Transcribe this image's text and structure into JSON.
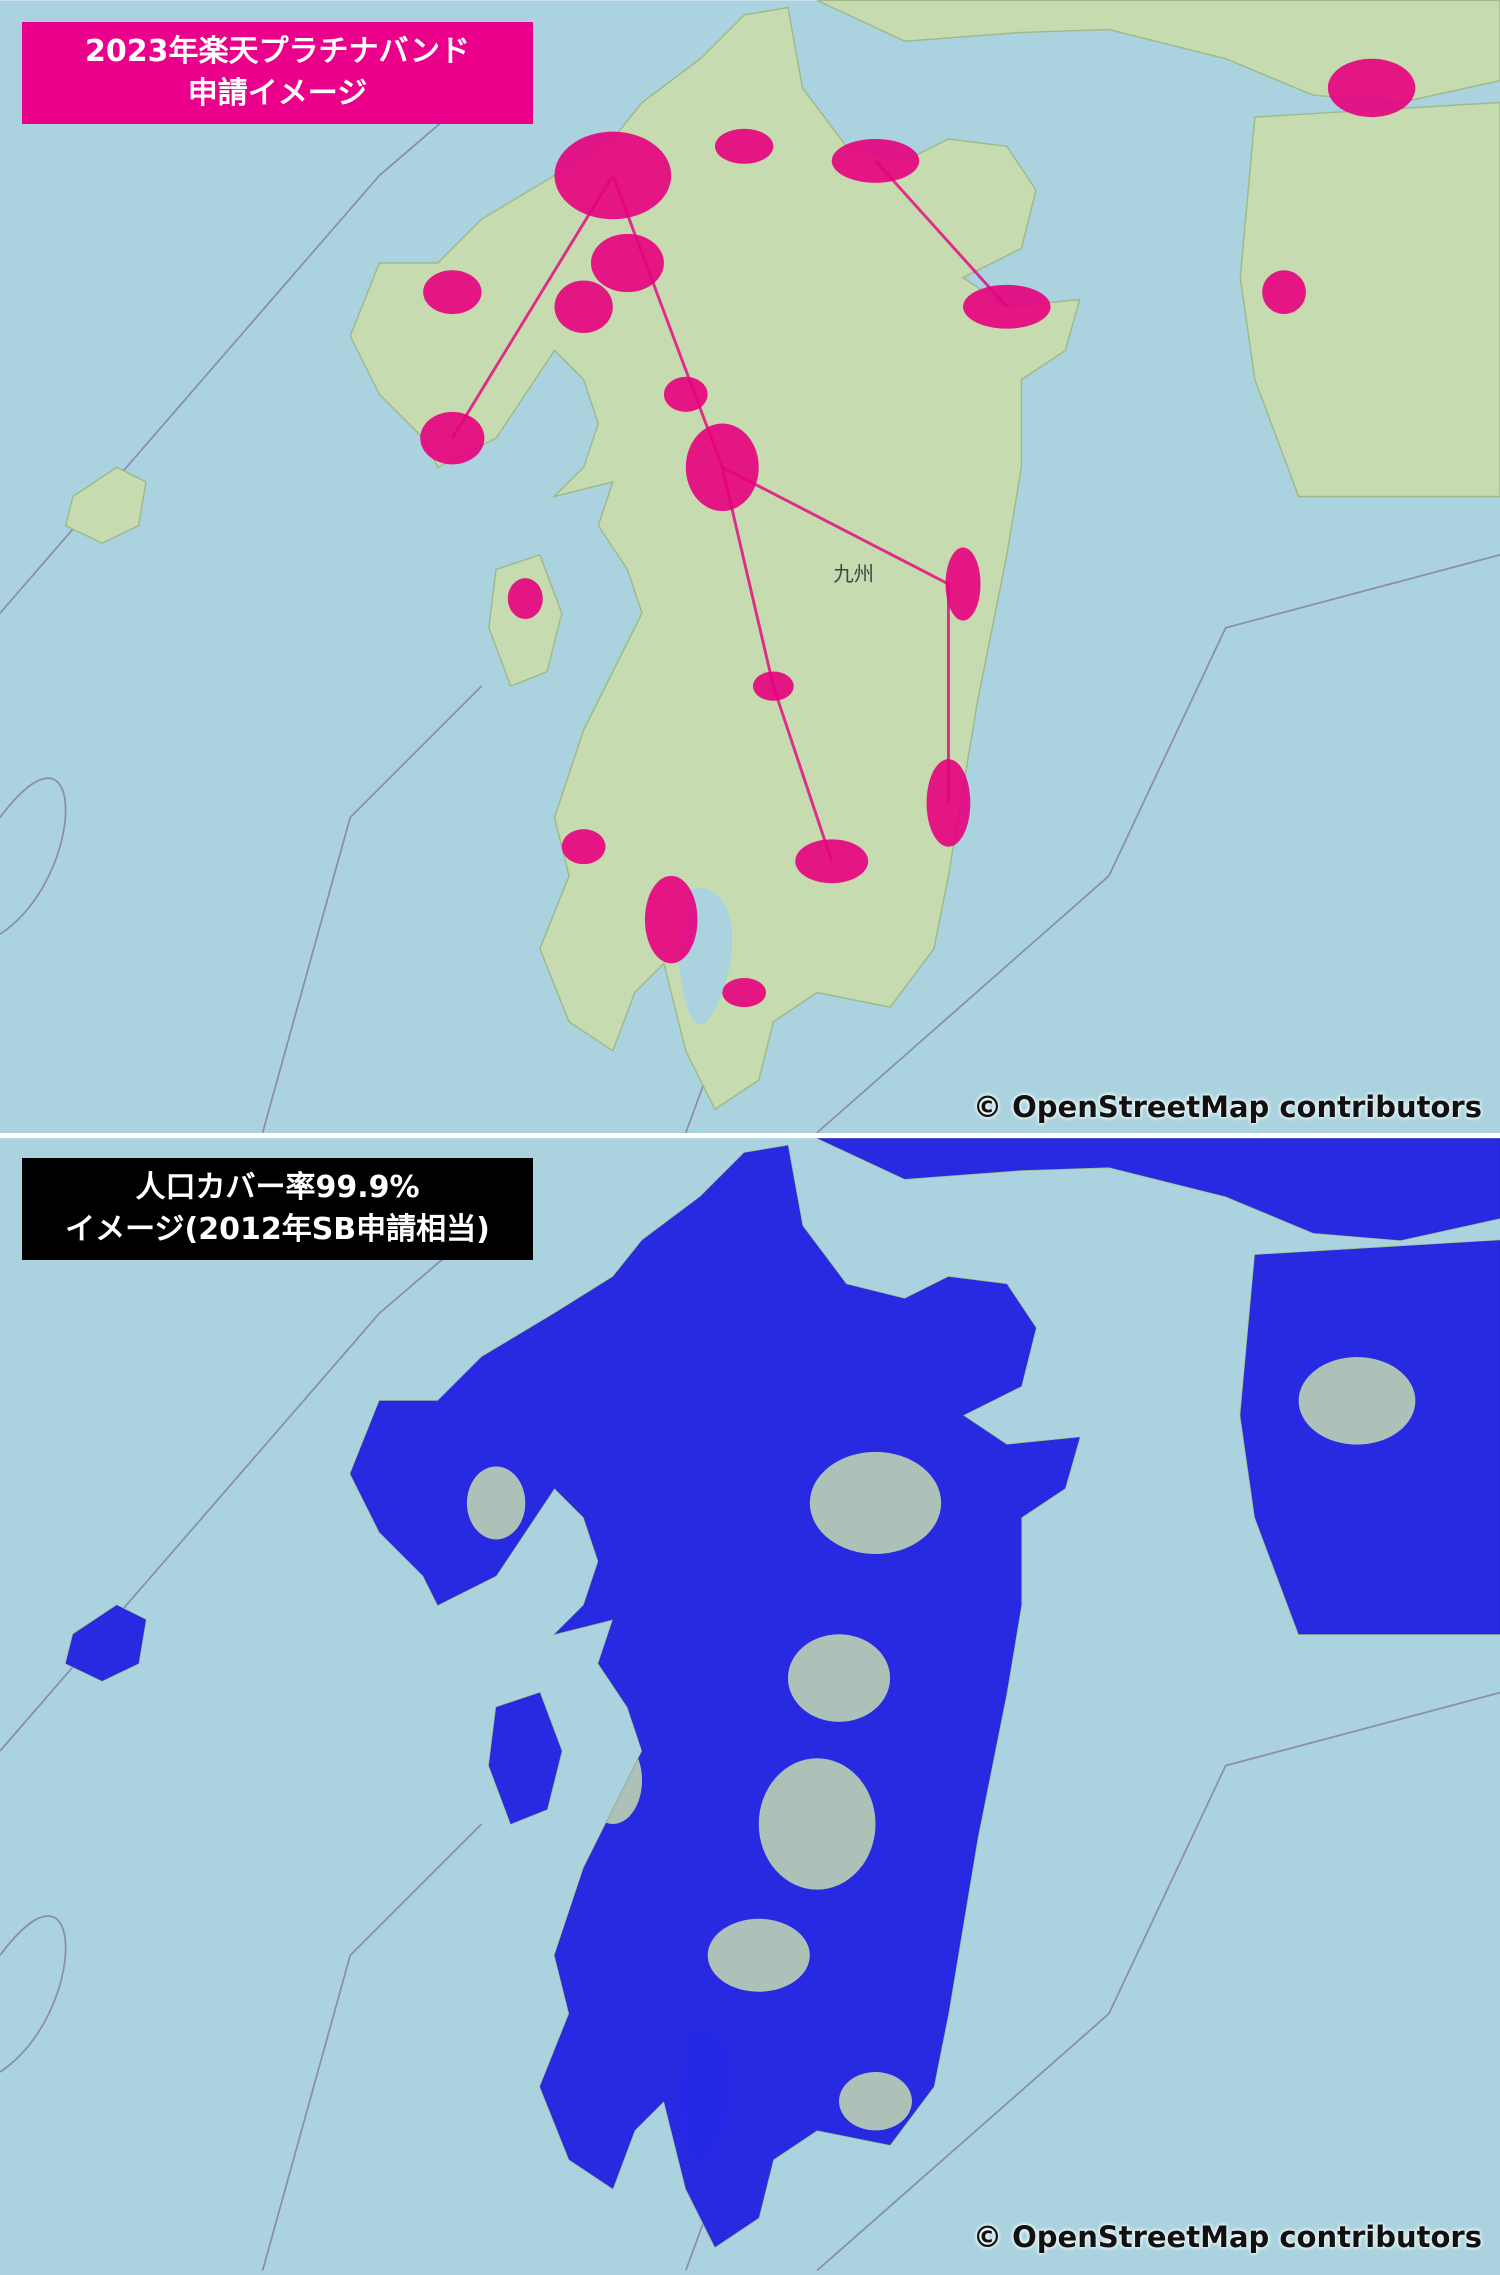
{
  "panels": [
    {
      "label": [
        "2023年楽天プラチナバンド",
        "申請イメージ"
      ],
      "attribution": "© OpenStreetMap contributors",
      "region_label": "九州"
    },
    {
      "label": [
        "人口カバー率99.9%",
        "イメージ(2012年SB申請相当)"
      ],
      "attribution": "© OpenStreetMap contributors"
    }
  ]
}
